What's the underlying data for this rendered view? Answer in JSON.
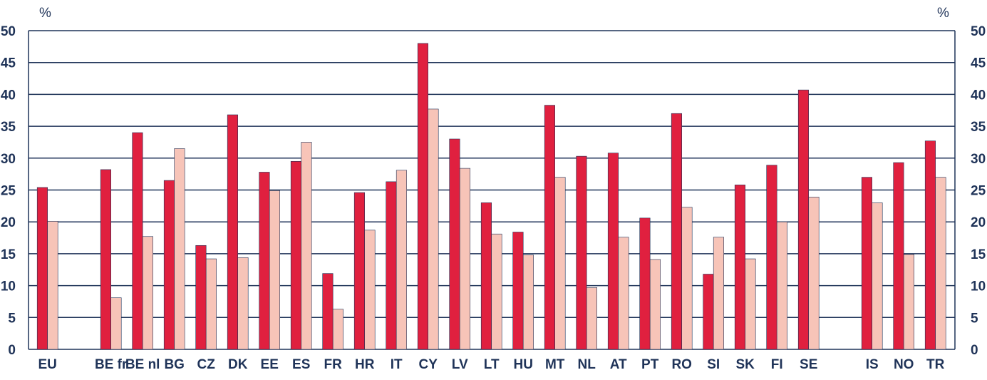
{
  "chart_data": {
    "type": "bar",
    "title": "",
    "xlabel": "",
    "ylabel": "%",
    "ylabel_right": "%",
    "ylim": [
      0,
      50
    ],
    "yticks": [
      0,
      5,
      10,
      15,
      20,
      25,
      30,
      35,
      40,
      45,
      50
    ],
    "grid": true,
    "legend": "none",
    "colors": [
      "#e0203f",
      "#f7c4b8"
    ],
    "categories": [
      "EU",
      "BE fr",
      "BE nl",
      "BG",
      "CZ",
      "DK",
      "EE",
      "ES",
      "FR",
      "HR",
      "IT",
      "CY",
      "LV",
      "LT",
      "HU",
      "MT",
      "NL",
      "AT",
      "PT",
      "RO",
      "SI",
      "SK",
      "FI",
      "SE",
      "IS",
      "NO",
      "TR"
    ],
    "series": [
      {
        "values": [
          25.4,
          28.2,
          34.0,
          26.5,
          16.3,
          36.8,
          27.8,
          29.5,
          11.9,
          24.6,
          26.3,
          48.0,
          33.0,
          23.0,
          18.4,
          38.3,
          30.3,
          30.8,
          20.6,
          37.0,
          11.8,
          25.8,
          28.9,
          40.7,
          27.0,
          29.3,
          32.7
        ]
      },
      {
        "values": [
          20.1,
          8.1,
          17.7,
          31.5,
          14.2,
          14.4,
          24.9,
          32.5,
          6.3,
          18.7,
          28.1,
          37.7,
          28.4,
          18.1,
          14.8,
          27.0,
          9.7,
          17.6,
          14.1,
          22.3,
          17.6,
          14.2,
          20.0,
          23.9,
          23.0,
          14.9,
          27.0
        ]
      }
    ]
  }
}
